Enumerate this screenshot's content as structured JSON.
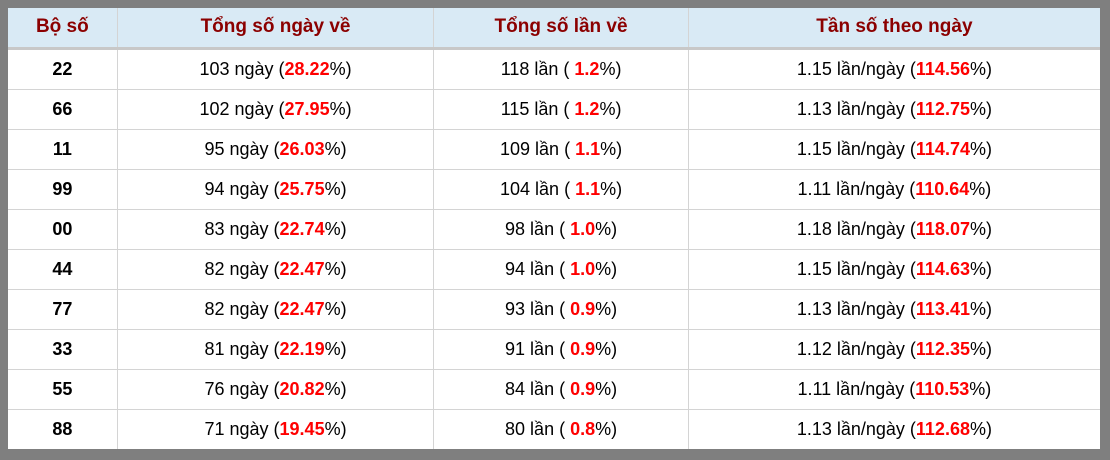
{
  "colors": {
    "header_bg": "#d9eaf5",
    "header_text": "#8b0000",
    "highlight_red": "#ff0000",
    "outer_border": "#7f7f7f",
    "cell_border": "#d4d4d4",
    "header_separator": "#c8c8c8"
  },
  "table": {
    "headers": [
      "Bộ số",
      "Tổng số ngày về",
      "Tổng số lần về",
      "Tần số theo ngày"
    ],
    "rows": [
      {
        "pair": "22",
        "days": [
          "103 ngày (",
          "28.22",
          "%)"
        ],
        "times": [
          "118 lần ( ",
          "1.2",
          "%)"
        ],
        "freq": [
          "1.15 lần/ngày (",
          "114.56",
          "%)"
        ]
      },
      {
        "pair": "66",
        "days": [
          "102 ngày (",
          "27.95",
          "%)"
        ],
        "times": [
          "115 lần ( ",
          "1.2",
          "%)"
        ],
        "freq": [
          "1.13 lần/ngày (",
          "112.75",
          "%)"
        ]
      },
      {
        "pair": "11",
        "days": [
          "95 ngày (",
          "26.03",
          "%)"
        ],
        "times": [
          "109 lần ( ",
          "1.1",
          "%)"
        ],
        "freq": [
          "1.15 lần/ngày (",
          "114.74",
          "%)"
        ]
      },
      {
        "pair": "99",
        "days": [
          "94 ngày (",
          "25.75",
          "%)"
        ],
        "times": [
          "104 lần ( ",
          "1.1",
          "%)"
        ],
        "freq": [
          "1.11 lần/ngày (",
          "110.64",
          "%)"
        ]
      },
      {
        "pair": "00",
        "days": [
          "83 ngày (",
          "22.74",
          "%)"
        ],
        "times": [
          "98 lần ( ",
          "1.0",
          "%)"
        ],
        "freq": [
          "1.18 lần/ngày (",
          "118.07",
          "%)"
        ]
      },
      {
        "pair": "44",
        "days": [
          "82 ngày (",
          "22.47",
          "%)"
        ],
        "times": [
          "94 lần ( ",
          "1.0",
          "%)"
        ],
        "freq": [
          "1.15 lần/ngày (",
          "114.63",
          "%)"
        ]
      },
      {
        "pair": "77",
        "days": [
          "82 ngày (",
          "22.47",
          "%)"
        ],
        "times": [
          "93 lần ( ",
          "0.9",
          "%)"
        ],
        "freq": [
          "1.13 lần/ngày (",
          "113.41",
          "%)"
        ]
      },
      {
        "pair": "33",
        "days": [
          "81 ngày (",
          "22.19",
          "%)"
        ],
        "times": [
          "91 lần ( ",
          "0.9",
          "%)"
        ],
        "freq": [
          "1.12 lần/ngày (",
          "112.35",
          "%)"
        ]
      },
      {
        "pair": "55",
        "days": [
          "76 ngày (",
          "20.82",
          "%)"
        ],
        "times": [
          "84 lần ( ",
          "0.9",
          "%)"
        ],
        "freq": [
          "1.11 lần/ngày (",
          "110.53",
          "%)"
        ]
      },
      {
        "pair": "88",
        "days": [
          "71 ngày (",
          "19.45",
          "%)"
        ],
        "times": [
          "80 lần ( ",
          "0.8",
          "%)"
        ],
        "freq": [
          "1.13 lần/ngày (",
          "112.68",
          "%)"
        ]
      }
    ]
  }
}
